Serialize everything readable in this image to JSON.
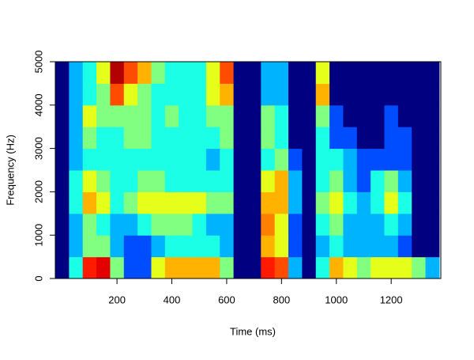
{
  "chart_data": {
    "type": "heatmap",
    "xlabel": "Time (ms)",
    "ylabel": "Frequency (Hz)",
    "colormap": "jet",
    "x": [
      0,
      50,
      100,
      150,
      200,
      250,
      300,
      350,
      400,
      450,
      500,
      550,
      600,
      650,
      700,
      750,
      800,
      850,
      900,
      950,
      1000,
      1050,
      1100,
      1150,
      1200,
      1250,
      1300,
      1350
    ],
    "y": [
      250,
      750,
      1250,
      1750,
      2250,
      2750,
      3250,
      3750,
      4250,
      4750
    ],
    "values": [
      [
        0,
        0.4,
        0.85,
        0.9,
        0.5,
        0.2,
        0.2,
        0.6,
        0.7,
        0.7,
        0.7,
        0.7,
        0.5,
        0,
        0,
        0.85,
        0.8,
        0.3,
        0,
        0.4,
        0.7,
        0.6,
        0.5,
        0.6,
        0.6,
        0.6,
        0.5,
        0.3
      ],
      [
        0,
        0.3,
        0.5,
        0.5,
        0.3,
        0.2,
        0.2,
        0.3,
        0.4,
        0.4,
        0.4,
        0.4,
        0.3,
        0,
        0,
        0.7,
        0.6,
        0.2,
        0,
        0.3,
        0.4,
        0.3,
        0.3,
        0.3,
        0.3,
        0.2,
        0,
        0
      ],
      [
        0,
        0.3,
        0.5,
        0.4,
        0.3,
        0.3,
        0.4,
        0.5,
        0.5,
        0.5,
        0.4,
        0.3,
        0.3,
        0,
        0,
        0.75,
        0.6,
        0.2,
        0,
        0.4,
        0.5,
        0.3,
        0.3,
        0.3,
        0.4,
        0.3,
        0,
        0
      ],
      [
        0,
        0.4,
        0.7,
        0.6,
        0.4,
        0.5,
        0.6,
        0.6,
        0.6,
        0.6,
        0.6,
        0.5,
        0.5,
        0,
        0,
        0.7,
        0.7,
        0.3,
        0,
        0.5,
        0.6,
        0.4,
        0.3,
        0.4,
        0.6,
        0.4,
        0,
        0
      ],
      [
        0,
        0.4,
        0.6,
        0.5,
        0.4,
        0.4,
        0.5,
        0.5,
        0.4,
        0.4,
        0.4,
        0.4,
        0.4,
        0,
        0,
        0.6,
        0.7,
        0.3,
        0,
        0.4,
        0.5,
        0.3,
        0.2,
        0.4,
        0.5,
        0.3,
        0,
        0
      ],
      [
        0,
        0.3,
        0.4,
        0.4,
        0.4,
        0.4,
        0.4,
        0.4,
        0.4,
        0.4,
        0.4,
        0.3,
        0.4,
        0,
        0,
        0.4,
        0.5,
        0.2,
        0,
        0.4,
        0.4,
        0.3,
        0.2,
        0.2,
        0.2,
        0.2,
        0,
        0
      ],
      [
        0,
        0.3,
        0.5,
        0.4,
        0.4,
        0.5,
        0.5,
        0.4,
        0.4,
        0.4,
        0.4,
        0.4,
        0.5,
        0,
        0,
        0.5,
        0.4,
        0,
        0,
        0.4,
        0.2,
        0.2,
        0,
        0,
        0.2,
        0.2,
        0,
        0
      ],
      [
        0,
        0.3,
        0.6,
        0.5,
        0.5,
        0.5,
        0.5,
        0.4,
        0.5,
        0.4,
        0.4,
        0.5,
        0.5,
        0,
        0,
        0.5,
        0.4,
        0,
        0,
        0.5,
        0.2,
        0,
        0,
        0,
        0.2,
        0,
        0,
        0
      ],
      [
        0,
        0.3,
        0.4,
        0.5,
        0.8,
        0.6,
        0.5,
        0.4,
        0.4,
        0.4,
        0.4,
        0.6,
        0.7,
        0,
        0,
        0.3,
        0.3,
        0,
        0,
        0.7,
        0,
        0,
        0,
        0,
        0,
        0,
        0,
        0
      ],
      [
        0,
        0.3,
        0.4,
        0.6,
        0.95,
        0.8,
        0.7,
        0.5,
        0.4,
        0.4,
        0.4,
        0.6,
        0.8,
        0,
        0,
        0.3,
        0.3,
        0,
        0,
        0.6,
        0,
        0,
        0,
        0,
        0,
        0,
        0,
        0
      ]
    ],
    "xlim": [
      -25,
      1381
    ],
    "ylim": [
      0,
      5000
    ],
    "xticks": [
      200,
      400,
      600,
      800,
      1000,
      1200
    ],
    "yticks": [
      0,
      1000,
      2000,
      3000,
      4000,
      5000
    ]
  }
}
